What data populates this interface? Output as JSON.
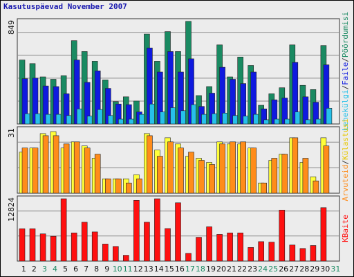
{
  "chart_data": {
    "type": "bar",
    "title": "Kasutuspäevad November 2007",
    "days": [
      "1",
      "2",
      "3",
      "4",
      "5",
      "6",
      "7",
      "8",
      "9",
      "10",
      "11",
      "12",
      "13",
      "14",
      "15",
      "16",
      "17",
      "18",
      "19",
      "20",
      "21",
      "22",
      "23",
      "24",
      "25",
      "26",
      "27",
      "28",
      "29",
      "30",
      "31"
    ],
    "weekend_days": [
      "3",
      "4",
      "10",
      "11",
      "17",
      "18",
      "24",
      "25",
      "31"
    ],
    "panels": [
      {
        "y_max_label": "849",
        "ylim": [
          0,
          849
        ],
        "series": [
          {
            "name": "Pöördumisi",
            "color": "#1a8a62",
            "values": [
              530,
              500,
              390,
              370,
              400,
              690,
              600,
              520,
              365,
              185,
              225,
              190,
              745,
              520,
              765,
              600,
              850,
              235,
              310,
              655,
              390,
              555,
              485,
              155,
              250,
              300,
              655,
              320,
              285,
              650,
              0
            ]
          },
          {
            "name": "Faile",
            "color": "#0f1adf",
            "values": [
              375,
              380,
              315,
              310,
              250,
              530,
              345,
              440,
              295,
              165,
              160,
              100,
              630,
              430,
              600,
              430,
              540,
              145,
              255,
              470,
              370,
              335,
              430,
              125,
              200,
              215,
              510,
              225,
              180,
              490,
              0
            ]
          },
          {
            "name": "Lehekülgi",
            "color": "#27c1ea",
            "values": [
              85,
              85,
              80,
              80,
              70,
              125,
              65,
              120,
              70,
              40,
              40,
              80,
              165,
              100,
              135,
              110,
              160,
              80,
              85,
              90,
              70,
              65,
              80,
              35,
              40,
              40,
              100,
              35,
              40,
              130,
              0
            ]
          }
        ]
      },
      {
        "y_max_label": "31",
        "ylim": [
          0,
          31
        ],
        "series": [
          {
            "name": "Külastusi",
            "color": "#ffff3a",
            "values": [
              20,
              22,
              29,
              30,
              22,
              25,
              23,
              17,
              7,
              7,
              7,
              9,
              29,
              21,
              27,
              24,
              18,
              17,
              15,
              25,
              24,
              24,
              22,
              5,
              16,
              19,
              27,
              15,
              8,
              27,
              0
            ]
          },
          {
            "name": "Arvuteid",
            "color": "#ff8c1a",
            "values": [
              22,
              22,
              28,
              28,
              24,
              25,
              22,
              19,
              7,
              7,
              5,
              7,
              28,
              18,
              25,
              22,
              20,
              16,
              14,
              24,
              25,
              25,
              22,
              5,
              17,
              19,
              27,
              17,
              6,
              23,
              0
            ]
          }
        ]
      },
      {
        "y_max_label": "12824",
        "ylim": [
          0,
          12824
        ],
        "series": [
          {
            "name": "KBaite",
            "color": "#ff1010",
            "values": [
              6650,
              6650,
              5600,
              5100,
              12824,
              5800,
              8000,
              6000,
              3500,
              3000,
              1200,
              12500,
              8000,
              12824,
              6700,
              12000,
              1600,
              4900,
              7050,
              5500,
              5800,
              5800,
              2800,
              4000,
              3900,
              10500,
              3300,
              2600,
              3200,
              11000,
              0
            ]
          }
        ]
      }
    ],
    "right_label_separator": "/",
    "right_label_colors": {
      "Pöördumisi": "#1a8a62",
      "Faile": "#0f1adf",
      "Lehekülgi": "#27c1ea",
      "Külastusi": "#e8c700",
      "Arvuteid": "#ff8c1a",
      "KBaite": "#ff1010",
      "separator": "#333333"
    },
    "weekday_label_color": "#111111",
    "weekend_label_color": "#1a8a62"
  }
}
